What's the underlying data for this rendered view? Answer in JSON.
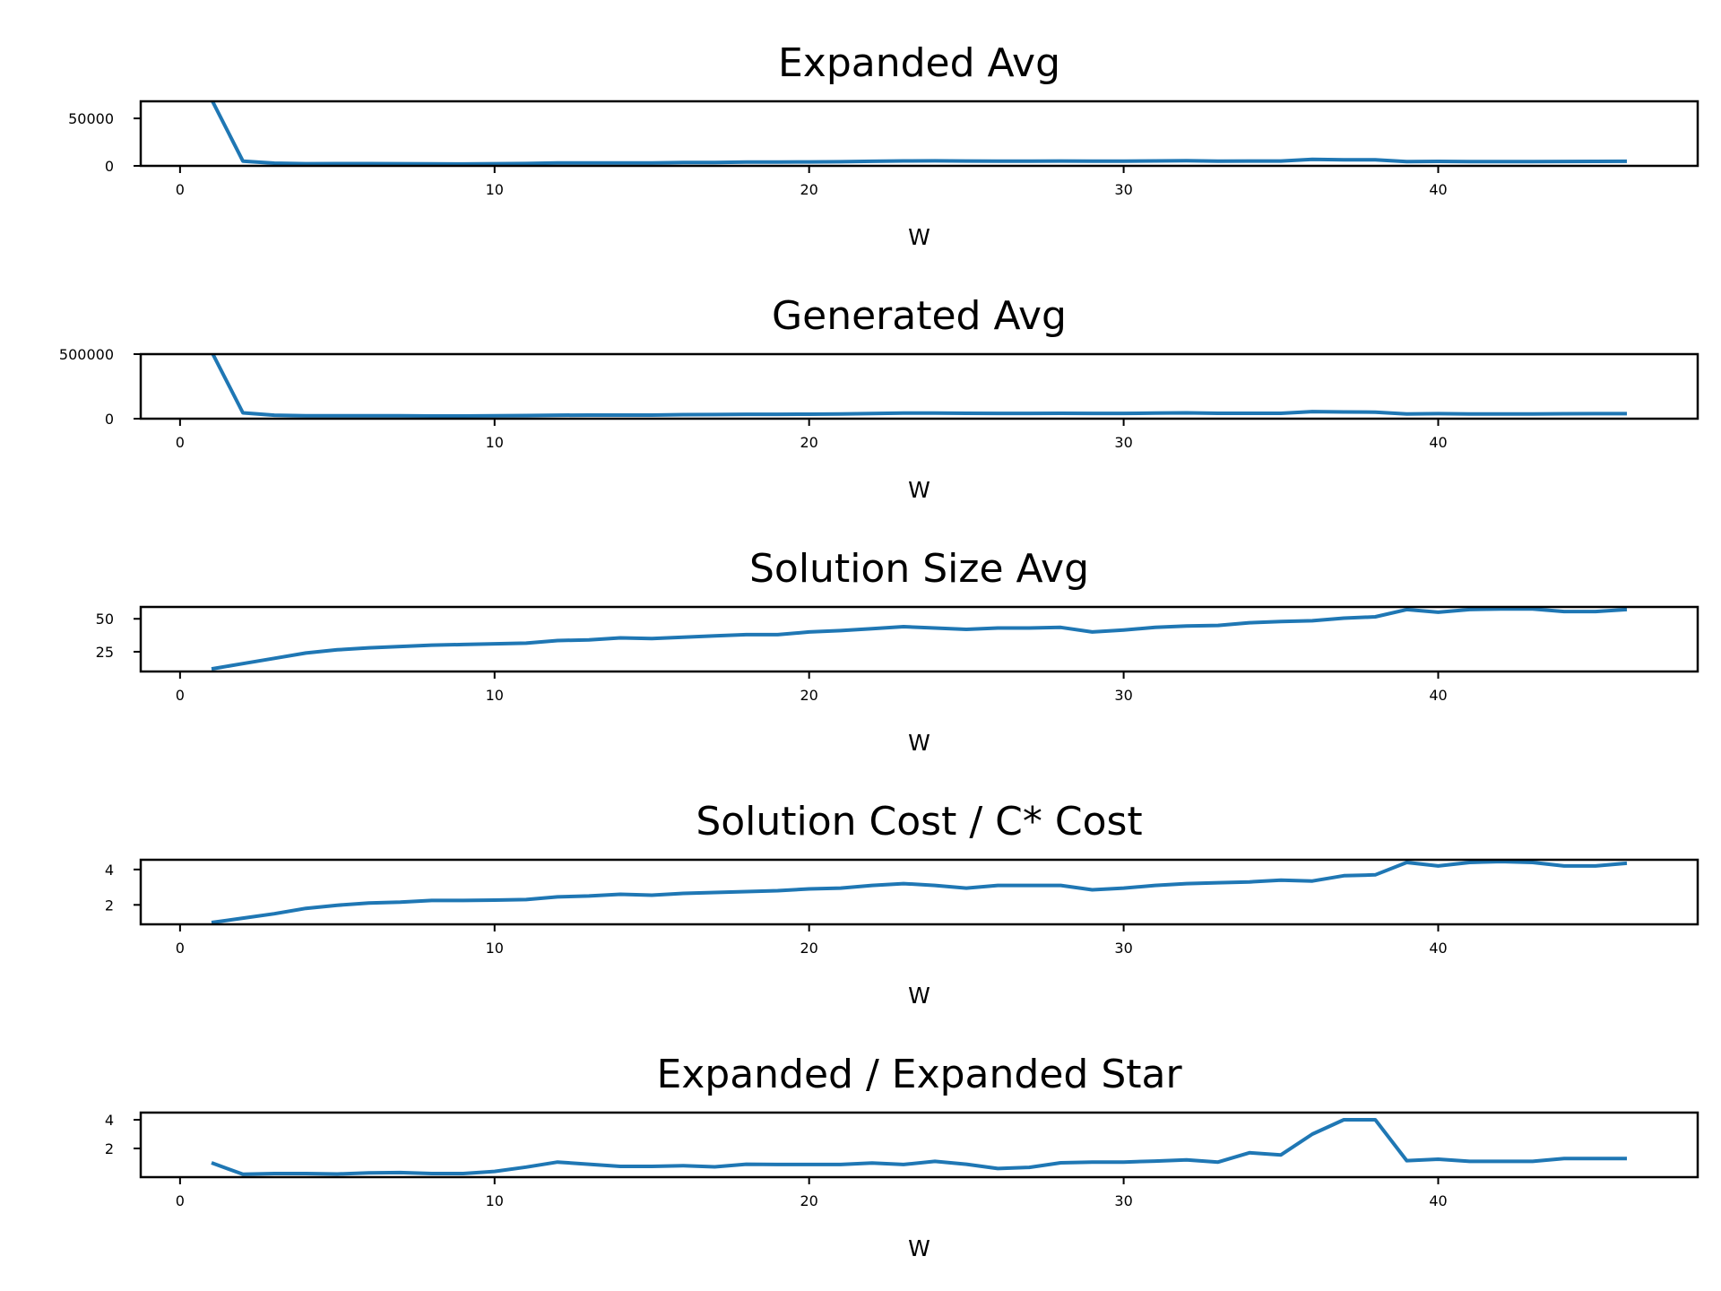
{
  "colors": {
    "series": "#1f77b4",
    "axes": "#000000",
    "background": "#ffffff"
  },
  "chart_data": [
    {
      "type": "line",
      "title": "Expanded Avg",
      "xlabel": "W",
      "ylabel": "",
      "xlim": [
        -1.25,
        48.25
      ],
      "ylim": [
        0,
        68000
      ],
      "xticks": [
        0,
        10,
        20,
        30,
        40
      ],
      "yticks": [
        0,
        50000
      ],
      "ytick_labels": [
        "0",
        "50000"
      ],
      "grid": false,
      "series": [
        {
          "x": [
            1,
            2,
            3,
            4,
            5,
            6,
            7,
            8,
            9,
            10,
            11,
            12,
            13,
            14,
            15,
            16,
            17,
            18,
            19,
            20,
            21,
            22,
            23,
            24,
            25,
            26,
            27,
            28,
            29,
            30,
            31,
            32,
            33,
            34,
            35,
            36,
            37,
            38,
            39,
            40,
            41,
            42,
            43,
            44,
            45,
            46
          ],
          "y": [
            70000,
            5000,
            2800,
            2300,
            2400,
            2400,
            2300,
            2100,
            2000,
            2300,
            2500,
            3000,
            3100,
            3000,
            3000,
            3500,
            3600,
            4000,
            4000,
            4200,
            4300,
            4800,
            5200,
            5300,
            5100,
            4900,
            4900,
            5100,
            5000,
            5000,
            5200,
            5400,
            5000,
            5100,
            5100,
            6800,
            6400,
            6300,
            4400,
            4700,
            4400,
            4400,
            4400,
            4600,
            4700,
            4800
          ]
        }
      ]
    },
    {
      "type": "line",
      "title": "Generated Avg",
      "xlabel": "W",
      "ylabel": "",
      "xlim": [
        -1.25,
        48.25
      ],
      "ylim": [
        0,
        500000
      ],
      "xticks": [
        0,
        10,
        20,
        30,
        40
      ],
      "yticks": [
        0,
        500000
      ],
      "ytick_labels": [
        "0",
        "500000"
      ],
      "grid": false,
      "series": [
        {
          "x": [
            1,
            2,
            3,
            4,
            5,
            6,
            7,
            8,
            9,
            10,
            11,
            12,
            13,
            14,
            15,
            16,
            17,
            18,
            19,
            20,
            21,
            22,
            23,
            24,
            25,
            26,
            27,
            28,
            29,
            30,
            31,
            32,
            33,
            34,
            35,
            36,
            37,
            38,
            39,
            40,
            41,
            42,
            43,
            44,
            45,
            46
          ],
          "y": [
            520000,
            45000,
            27000,
            23000,
            23000,
            23000,
            22000,
            21000,
            21000,
            23000,
            24000,
            27000,
            28000,
            28000,
            28000,
            31000,
            32000,
            34000,
            34000,
            35000,
            36000,
            40000,
            43000,
            43000,
            42000,
            41000,
            41000,
            42000,
            41000,
            41000,
            43000,
            45000,
            42000,
            42000,
            42000,
            55000,
            52000,
            51000,
            37000,
            39000,
            37000,
            37000,
            37000,
            38000,
            39000,
            39000
          ]
        }
      ]
    },
    {
      "type": "line",
      "title": "Solution Size Avg",
      "xlabel": "W",
      "ylabel": "",
      "xlim": [
        -1.25,
        48.25
      ],
      "ylim": [
        10,
        59
      ],
      "xticks": [
        0,
        10,
        20,
        30,
        40
      ],
      "yticks": [
        25,
        50
      ],
      "ytick_labels": [
        "25",
        "50"
      ],
      "grid": false,
      "series": [
        {
          "x": [
            1,
            2,
            3,
            4,
            5,
            6,
            7,
            8,
            9,
            10,
            11,
            12,
            13,
            14,
            15,
            16,
            17,
            18,
            19,
            20,
            21,
            22,
            23,
            24,
            25,
            26,
            27,
            28,
            29,
            30,
            31,
            32,
            33,
            34,
            35,
            36,
            37,
            38,
            39,
            40,
            41,
            42,
            43,
            44,
            45,
            46
          ],
          "y": [
            12,
            16,
            20,
            24,
            26.5,
            28,
            29,
            30,
            30.5,
            31,
            31.5,
            33.5,
            34,
            35.5,
            35,
            36,
            37,
            38,
            38,
            40,
            41,
            42.5,
            44,
            43,
            42,
            43,
            43,
            43.5,
            40,
            41.5,
            43.5,
            44.5,
            45,
            47,
            48,
            48.5,
            50.5,
            51.5,
            57,
            55,
            57,
            57.5,
            57.5,
            55.5,
            55.5,
            57
          ]
        }
      ]
    },
    {
      "type": "line",
      "title": "Solution Cost / C* Cost",
      "xlabel": "W",
      "ylabel": "",
      "xlim": [
        -1.25,
        48.25
      ],
      "ylim": [
        0.9,
        4.55
      ],
      "xticks": [
        0,
        10,
        20,
        30,
        40
      ],
      "yticks": [
        2,
        4
      ],
      "ytick_labels": [
        "2",
        "4"
      ],
      "grid": false,
      "series": [
        {
          "x": [
            1,
            2,
            3,
            4,
            5,
            6,
            7,
            8,
            9,
            10,
            11,
            12,
            13,
            14,
            15,
            16,
            17,
            18,
            19,
            20,
            21,
            22,
            23,
            24,
            25,
            26,
            27,
            28,
            29,
            30,
            31,
            32,
            33,
            34,
            35,
            36,
            37,
            38,
            39,
            40,
            41,
            42,
            43,
            44,
            45,
            46
          ],
          "y": [
            1.0,
            1.25,
            1.5,
            1.8,
            1.98,
            2.1,
            2.15,
            2.25,
            2.25,
            2.27,
            2.3,
            2.45,
            2.5,
            2.6,
            2.55,
            2.65,
            2.7,
            2.75,
            2.8,
            2.9,
            2.95,
            3.1,
            3.2,
            3.1,
            2.95,
            3.1,
            3.1,
            3.1,
            2.85,
            2.95,
            3.1,
            3.2,
            3.25,
            3.3,
            3.4,
            3.35,
            3.65,
            3.7,
            4.4,
            4.2,
            4.4,
            4.45,
            4.4,
            4.2,
            4.2,
            4.35
          ]
        }
      ]
    },
    {
      "type": "line",
      "title": "Expanded / Expanded Star",
      "xlabel": "W",
      "ylabel": "",
      "xlim": [
        -1.25,
        48.25
      ],
      "ylim": [
        0,
        4.5
      ],
      "xticks": [
        0,
        10,
        20,
        30,
        40
      ],
      "yticks": [
        2,
        4
      ],
      "ytick_labels": [
        "2",
        "4"
      ],
      "grid": false,
      "series": [
        {
          "x": [
            1,
            2,
            3,
            4,
            5,
            6,
            7,
            8,
            9,
            10,
            11,
            12,
            13,
            14,
            15,
            16,
            17,
            18,
            19,
            20,
            21,
            22,
            23,
            24,
            25,
            26,
            27,
            28,
            29,
            30,
            31,
            32,
            33,
            34,
            35,
            36,
            37,
            38,
            39,
            40,
            41,
            42,
            43,
            44,
            45,
            46
          ],
          "y": [
            1.0,
            0.2,
            0.25,
            0.25,
            0.22,
            0.3,
            0.32,
            0.25,
            0.25,
            0.4,
            0.7,
            1.05,
            0.9,
            0.75,
            0.75,
            0.8,
            0.72,
            0.9,
            0.88,
            0.88,
            0.88,
            0.98,
            0.88,
            1.1,
            0.9,
            0.6,
            0.68,
            1.0,
            1.05,
            1.05,
            1.12,
            1.2,
            1.05,
            1.7,
            1.55,
            3.0,
            4.0,
            4.0,
            1.15,
            1.25,
            1.1,
            1.1,
            1.1,
            1.3,
            1.3,
            1.3
          ]
        }
      ]
    }
  ]
}
